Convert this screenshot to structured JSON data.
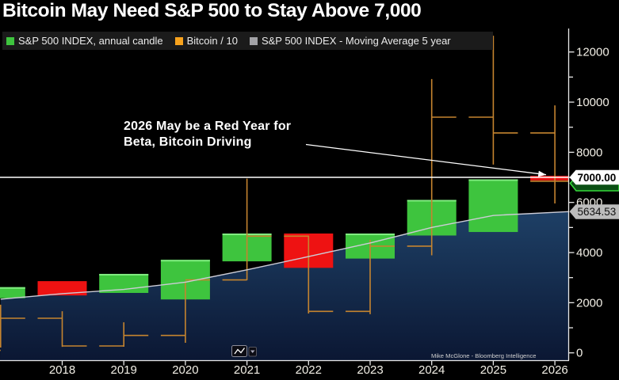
{
  "title": "Bitcoin May Need S&P 500 to Stay Above 7,000",
  "legend": {
    "items": [
      {
        "label": "S&P 500 INDEX, annual candle",
        "color": "#3ec43e"
      },
      {
        "label": "Bitcoin / 10",
        "color": "#f7a21d"
      },
      {
        "label": "S&P 500 INDEX - Moving Average 5 year",
        "color": "#a2a2a6"
      }
    ]
  },
  "annotation": {
    "line1": "2026 May be a Red Year for",
    "line2": "Beta, Bitcoin Driving"
  },
  "credit": "Mike McGlone - Bloomberg Intelligence",
  "price_labels": {
    "level": "7000.00",
    "ma": "5634.53"
  },
  "colors": {
    "bg": "#000000",
    "legend_bg": "#1b1b1b",
    "candle_up": "#3ec43e",
    "candle_up_edge": "#80ec80",
    "candle_down": "#ee1212",
    "bitcoin_line": "#c5842f",
    "ma_line": "#ccccd6",
    "area_top": "#1e4066",
    "area_bottom": "#0b1733",
    "level_line": "#ffffff",
    "axis_line": "#e9e9e9",
    "tick_label": "#f2efe6",
    "label_level_bg": "#ffffff",
    "label_level_text": "#000000",
    "label_ma_bg": "#bcbcbc",
    "label_ma_text": "#111111",
    "hidden_label_border": "#35d93a",
    "hidden_label_fill": "#0b4f14",
    "annotation_text": "#ffffff",
    "arrow": "#ffffff",
    "credit_text": "#d0d0d0"
  },
  "chart_data": {
    "type": "candlestick",
    "title": "Bitcoin May Need S&P 500 to Stay Above 7,000",
    "x_ticks": [
      {
        "year": 2018,
        "label": "2018"
      },
      {
        "year": 2019,
        "label": "2019"
      },
      {
        "year": 2020,
        "label": "2020"
      },
      {
        "year": 2021,
        "label": "2021"
      },
      {
        "year": 2022,
        "label": "2022"
      },
      {
        "year": 2023,
        "label": "2023"
      },
      {
        "year": 2024,
        "label": "2024"
      },
      {
        "year": 2025,
        "label": "2025"
      },
      {
        "year": 2026,
        "label": "2026"
      }
    ],
    "y_axis": {
      "min": 0,
      "max": 12000,
      "side": "right",
      "major_ticks": [
        {
          "v": 0,
          "label": "0"
        },
        {
          "v": 2000,
          "label": "2000"
        },
        {
          "v": 4000,
          "label": "4000"
        },
        {
          "v": 6000,
          "label": "6000"
        },
        {
          "v": 8000,
          "label": "8000"
        },
        {
          "v": 10000,
          "label": "10000"
        },
        {
          "v": 12000,
          "label": "12000"
        }
      ],
      "minor_ticks": [
        1000,
        3000,
        5000,
        7000,
        9000,
        11000
      ]
    },
    "levels": [
      {
        "value": 7000,
        "label": "7000.00"
      }
    ],
    "last_values": {
      "ma": 5634.53,
      "level": 7000
    },
    "series": [
      {
        "name": "S&P 500 INDEX, annual candle",
        "type": "candle",
        "points": [
          {
            "year": 2017,
            "low": 2180,
            "high": 2620,
            "dir": "up"
          },
          {
            "year": 2018,
            "low": 2290,
            "high": 2860,
            "dir": "down"
          },
          {
            "year": 2019,
            "low": 2390,
            "high": 3150,
            "dir": "up"
          },
          {
            "year": 2020,
            "low": 2130,
            "high": 3710,
            "dir": "up"
          },
          {
            "year": 2021,
            "low": 3650,
            "high": 4760,
            "dir": "up"
          },
          {
            "year": 2022,
            "low": 3390,
            "high": 4760,
            "dir": "down"
          },
          {
            "year": 2023,
            "low": 3760,
            "high": 4760,
            "dir": "up"
          },
          {
            "year": 2024,
            "low": 4680,
            "high": 6100,
            "dir": "up"
          },
          {
            "year": 2025,
            "low": 4820,
            "high": 6920,
            "dir": "up"
          },
          {
            "year": 2026,
            "low": 6880,
            "high": 7060,
            "dir": "down"
          }
        ]
      },
      {
        "name": "Bitcoin / 10",
        "type": "ohlc",
        "points": [
          {
            "year": 2017,
            "open": 100,
            "high": 1920,
            "low": 210,
            "close": 1380
          },
          {
            "year": 2018,
            "open": 1380,
            "high": 1660,
            "low": 240,
            "close": 275
          },
          {
            "year": 2019,
            "open": 275,
            "high": 1220,
            "low": 245,
            "close": 695
          },
          {
            "year": 2020,
            "open": 695,
            "high": 2860,
            "low": 400,
            "close": 2910
          },
          {
            "year": 2021,
            "open": 2910,
            "high": 6950,
            "low": 2900,
            "close": 4655
          },
          {
            "year": 2022,
            "open": 4655,
            "high": 4680,
            "low": 1570,
            "close": 1655
          },
          {
            "year": 2023,
            "open": 1655,
            "high": 4510,
            "low": 1540,
            "close": 4255
          },
          {
            "year": 2024,
            "open": 4255,
            "high": 10920,
            "low": 3890,
            "close": 9400
          },
          {
            "year": 2025,
            "open": 9400,
            "high": 12650,
            "low": 7510,
            "close": 8770
          },
          {
            "year": 2026,
            "open": 8770,
            "high": 9870,
            "low": 5960,
            "close": 6845,
            "wide_close": true
          }
        ]
      },
      {
        "name": "S&P 500 INDEX - Moving Average 5 year",
        "type": "line",
        "points": [
          {
            "x": 2017,
            "v": 2140
          },
          {
            "x": 2018,
            "v": 2360
          },
          {
            "x": 2019,
            "v": 2530
          },
          {
            "x": 2020,
            "v": 2820
          },
          {
            "x": 2021,
            "v": 3310
          },
          {
            "x": 2022,
            "v": 3840
          },
          {
            "x": 2023,
            "v": 4380
          },
          {
            "x": 2024,
            "v": 5000
          },
          {
            "x": 2025,
            "v": 5480
          },
          {
            "x": 2026.23,
            "v": 5634.53
          }
        ]
      }
    ]
  }
}
